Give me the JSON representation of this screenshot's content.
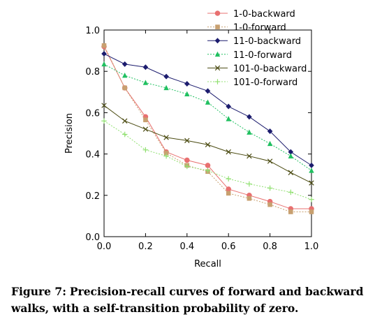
{
  "chart_data": {
    "type": "line",
    "title": "",
    "xlabel": "Recall",
    "ylabel": "Precision",
    "xlim": [
      0.0,
      1.0
    ],
    "ylim": [
      0.0,
      1.0
    ],
    "x_ticks": [
      "0.0",
      "0.2",
      "0.4",
      "0.6",
      "0.8",
      "1.0"
    ],
    "y_ticks": [
      "0.0",
      "0.2",
      "0.4",
      "0.6",
      "0.8",
      "1.0"
    ],
    "grid": false,
    "legend_position": "top-right",
    "x": [
      0.0,
      0.1,
      0.2,
      0.3,
      0.4,
      0.5,
      0.6,
      0.7,
      0.8,
      0.9,
      1.0
    ],
    "series": [
      {
        "name": "1-0-backward",
        "color": "#e87070",
        "marker": "circle",
        "dash": "solid",
        "values": [
          0.92,
          0.72,
          0.58,
          0.41,
          0.37,
          0.345,
          0.23,
          0.2,
          0.17,
          0.135,
          0.135
        ]
      },
      {
        "name": "1-0-forward",
        "color": "#c8a070",
        "marker": "square",
        "dash": "dotted",
        "values": [
          0.925,
          0.72,
          0.565,
          0.405,
          0.345,
          0.315,
          0.21,
          0.185,
          0.155,
          0.12,
          0.12
        ]
      },
      {
        "name": "11-0-backward",
        "color": "#1c1c6e",
        "marker": "diamond",
        "dash": "solid",
        "values": [
          0.885,
          0.835,
          0.82,
          0.775,
          0.74,
          0.705,
          0.63,
          0.58,
          0.51,
          0.41,
          0.345
        ]
      },
      {
        "name": "11-0-forward",
        "color": "#20c060",
        "marker": "triangle",
        "dash": "dotted",
        "values": [
          0.835,
          0.78,
          0.745,
          0.72,
          0.69,
          0.65,
          0.57,
          0.505,
          0.45,
          0.39,
          0.32
        ]
      },
      {
        "name": "101-0-backward",
        "color": "#4a4a10",
        "marker": "x",
        "dash": "solid",
        "values": [
          0.635,
          0.56,
          0.52,
          0.48,
          0.465,
          0.445,
          0.41,
          0.39,
          0.365,
          0.31,
          0.26
        ]
      },
      {
        "name": "101-0-forward",
        "color": "#90e070",
        "marker": "plus",
        "dash": "dotted",
        "values": [
          0.56,
          0.495,
          0.42,
          0.39,
          0.34,
          0.32,
          0.28,
          0.255,
          0.235,
          0.215,
          0.18
        ]
      }
    ]
  },
  "caption": {
    "lead": "Figure 7:",
    "text": "Precision-recall curves of forward and backward walks, with a self-transition probability of zero."
  }
}
